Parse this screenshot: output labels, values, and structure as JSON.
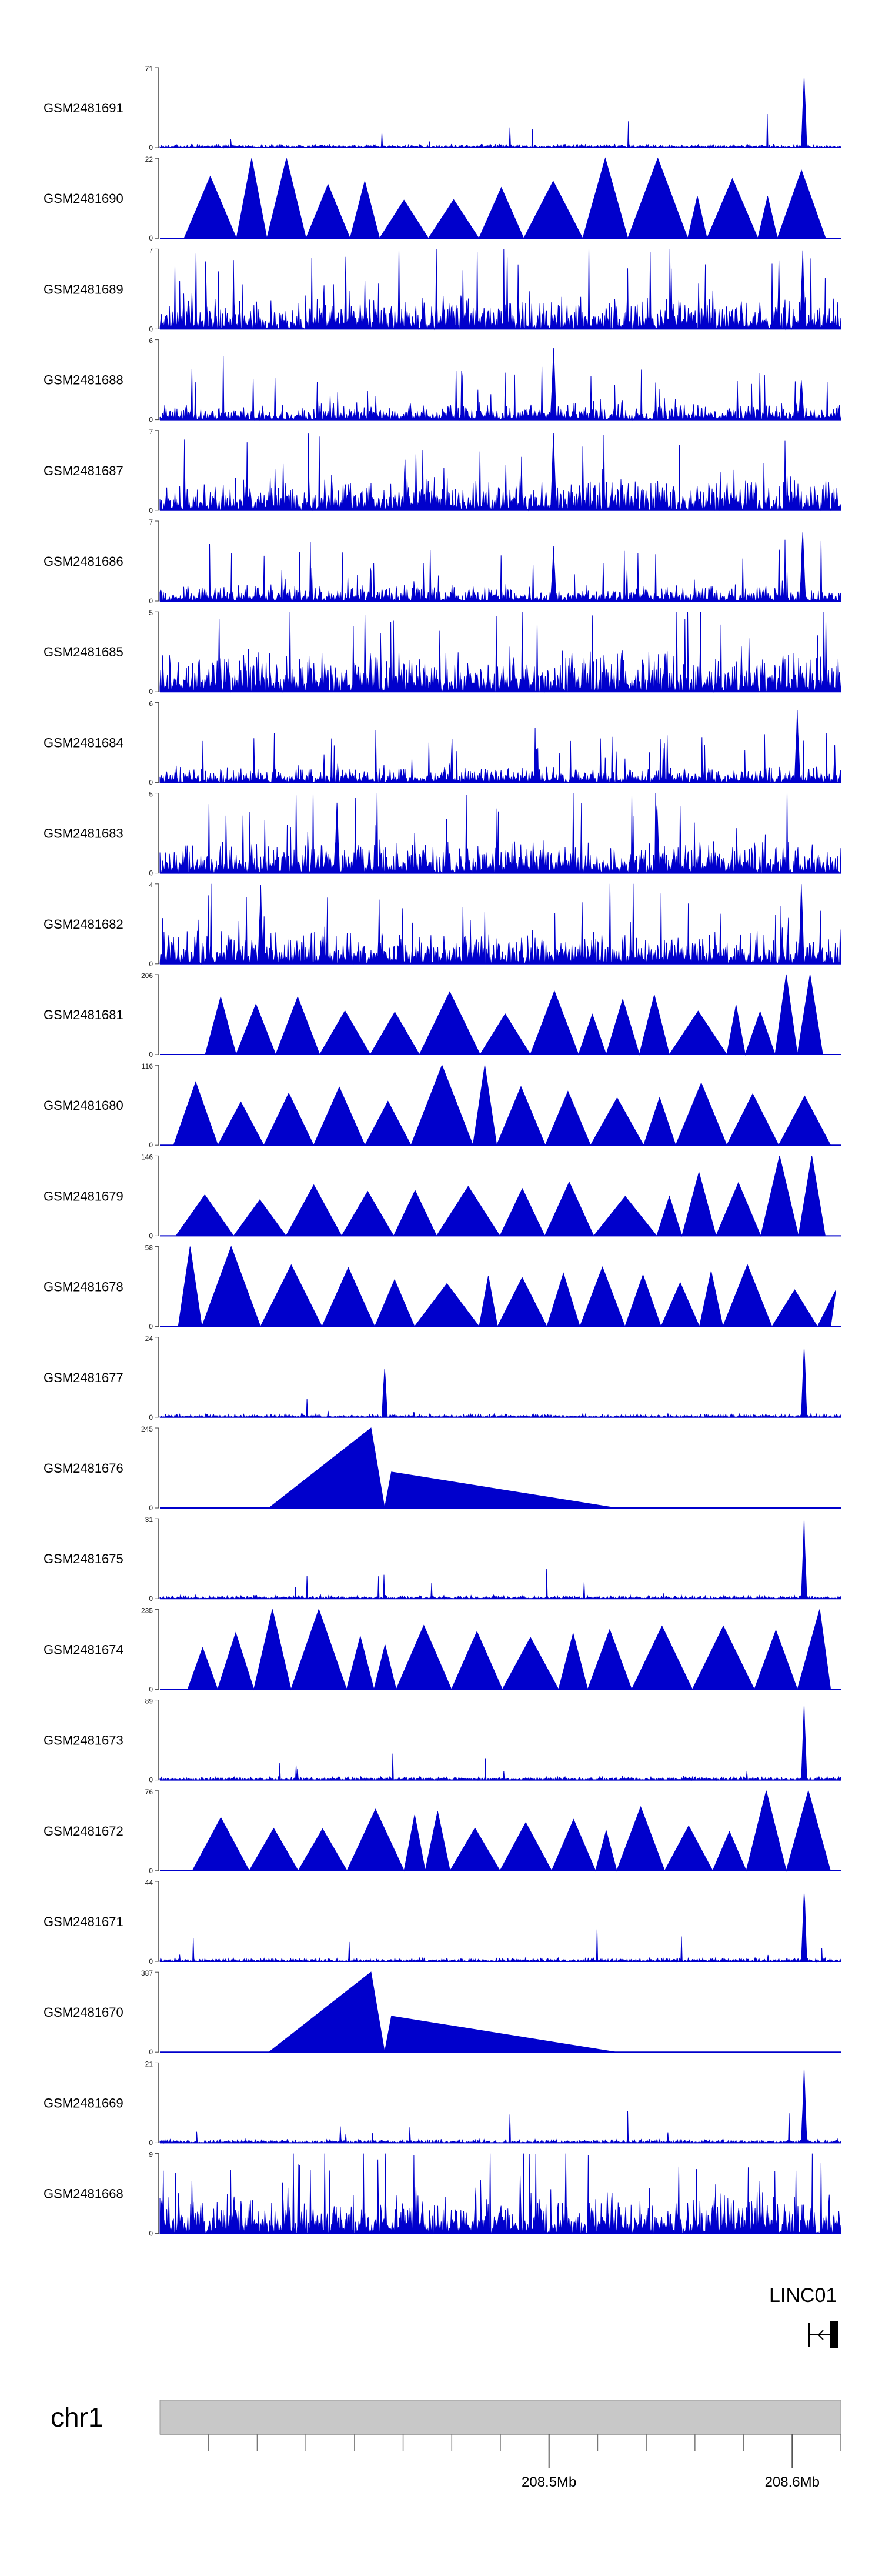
{
  "chart_data": {
    "type": "area",
    "title": "",
    "color": "#0000cc",
    "tracks": [
      {
        "name": "GSM2481691",
        "ymax": "71",
        "profile": "noise-low",
        "peaks": [
          [
            0.946,
            1.0
          ]
        ]
      },
      {
        "name": "GSM2481690",
        "ymax": "22",
        "profile": "triangles",
        "peaks": [
          [
            0.17,
            1.0
          ],
          [
            0.71,
            1.0
          ],
          [
            0.99,
            0.85
          ]
        ]
      },
      {
        "name": "GSM2481689",
        "ymax": "7",
        "profile": "noise-high",
        "peaks": [
          [
            0.944,
            1.0
          ]
        ]
      },
      {
        "name": "GSM2481688",
        "ymax": "6",
        "profile": "noise-mid",
        "peaks": [
          [
            0.578,
            1.0
          ],
          [
            0.942,
            0.55
          ]
        ]
      },
      {
        "name": "GSM2481687",
        "ymax": "7",
        "profile": "noise-high",
        "peaks": [
          [
            0.578,
            1.0
          ]
        ]
      },
      {
        "name": "GSM2481686",
        "ymax": "7",
        "profile": "noise-mid",
        "peaks": [
          [
            0.578,
            0.7
          ],
          [
            0.944,
            1.0
          ]
        ]
      },
      {
        "name": "GSM2481685",
        "ymax": "5",
        "profile": "noise-dense",
        "peaks": []
      },
      {
        "name": "GSM2481684",
        "ymax": "6",
        "profile": "noise-mid",
        "peaks": [
          [
            0.936,
            0.95
          ]
        ]
      },
      {
        "name": "GSM2481683",
        "ymax": "5",
        "profile": "noise-high",
        "peaks": [
          [
            0.26,
            0.9
          ],
          [
            0.73,
            0.9
          ]
        ]
      },
      {
        "name": "GSM2481682",
        "ymax": "4",
        "profile": "noise-high",
        "peaks": [
          [
            0.148,
            1.0
          ],
          [
            0.942,
            1.0
          ]
        ]
      },
      {
        "name": "GSM2481681",
        "ymax": "206",
        "profile": "triangles",
        "peaks": [
          [
            0.945,
            1.0
          ],
          [
            0.985,
            0.65
          ]
        ]
      },
      {
        "name": "GSM2481680",
        "ymax": "116",
        "profile": "triangles",
        "peaks": [
          [
            0.2,
            0.65
          ],
          [
            0.455,
            1.0
          ],
          [
            0.48,
            0.6
          ]
        ]
      },
      {
        "name": "GSM2481679",
        "ymax": "146",
        "profile": "triangles",
        "peaks": [
          [
            0.14,
            0.45
          ],
          [
            0.2,
            0.45
          ],
          [
            0.944,
            1.0
          ]
        ]
      },
      {
        "name": "GSM2481678",
        "ymax": "58",
        "profile": "triangles",
        "peaks": [
          [
            0.055,
            1.0
          ]
        ]
      },
      {
        "name": "GSM2481677",
        "ymax": "24",
        "profile": "noise-low",
        "peaks": [
          [
            0.33,
            0.7
          ],
          [
            0.946,
            1.0
          ]
        ]
      },
      {
        "name": "GSM2481676",
        "ymax": "245",
        "profile": "big-tri",
        "peaks": []
      },
      {
        "name": "GSM2481675",
        "ymax": "31",
        "profile": "noise-low",
        "peaks": [
          [
            0.946,
            1.0
          ]
        ]
      },
      {
        "name": "GSM2481674",
        "ymax": "235",
        "profile": "triangles",
        "peaks": [
          [
            0.2,
            1.0
          ],
          [
            0.99,
            1.0
          ]
        ]
      },
      {
        "name": "GSM2481673",
        "ymax": "89",
        "profile": "noise-low",
        "peaks": [
          [
            0.946,
            1.0
          ]
        ]
      },
      {
        "name": "GSM2481672",
        "ymax": "76",
        "profile": "triangles",
        "peaks": [
          [
            0.93,
            1.0
          ]
        ]
      },
      {
        "name": "GSM2481671",
        "ymax": "44",
        "profile": "noise-low",
        "peaks": [
          [
            0.946,
            1.0
          ]
        ]
      },
      {
        "name": "GSM2481670",
        "ymax": "387",
        "profile": "big-tri",
        "peaks": []
      },
      {
        "name": "GSM2481669",
        "ymax": "21",
        "profile": "noise-low",
        "peaks": [
          [
            0.946,
            1.0
          ]
        ]
      },
      {
        "name": "GSM2481668",
        "ymax": "9",
        "profile": "noise-dense",
        "peaks": []
      }
    ],
    "y_min_label": "0",
    "gene": {
      "name": "LINC01",
      "strand": "-"
    },
    "chromosome": "chr1",
    "x_axis": {
      "range_mb": [
        208.34,
        208.62
      ],
      "tick_labels": [
        "208.5Mb",
        "208.6Mb"
      ],
      "labeled_ticks_mb": [
        208.5,
        208.6
      ]
    }
  }
}
